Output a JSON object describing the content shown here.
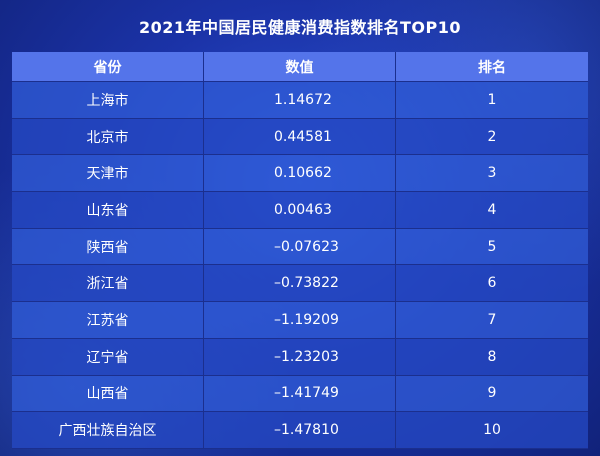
{
  "title": "2021年中国居民健康消费指数排名TOP10",
  "header": {
    "province": "省份",
    "value": "数值",
    "rank": "排名"
  },
  "rows": [
    {
      "province": "上海市",
      "value": "1.14672",
      "rank": "1"
    },
    {
      "province": "北京市",
      "value": "0.44581",
      "rank": "2"
    },
    {
      "province": "天津市",
      "value": "0.10662",
      "rank": "3"
    },
    {
      "province": "山东省",
      "value": "0.00463",
      "rank": "4"
    },
    {
      "province": "陕西省",
      "value": "–0.07623",
      "rank": "5"
    },
    {
      "province": "浙江省",
      "value": "–0.73822",
      "rank": "6"
    },
    {
      "province": "江苏省",
      "value": "–1.19209",
      "rank": "7"
    },
    {
      "province": "辽宁省",
      "value": "–1.23203",
      "rank": "8"
    },
    {
      "province": "山西省",
      "value": "–1.41749",
      "rank": "9"
    },
    {
      "province": "广西壮族自治区",
      "value": "–1.47810",
      "rank": "10"
    }
  ]
}
